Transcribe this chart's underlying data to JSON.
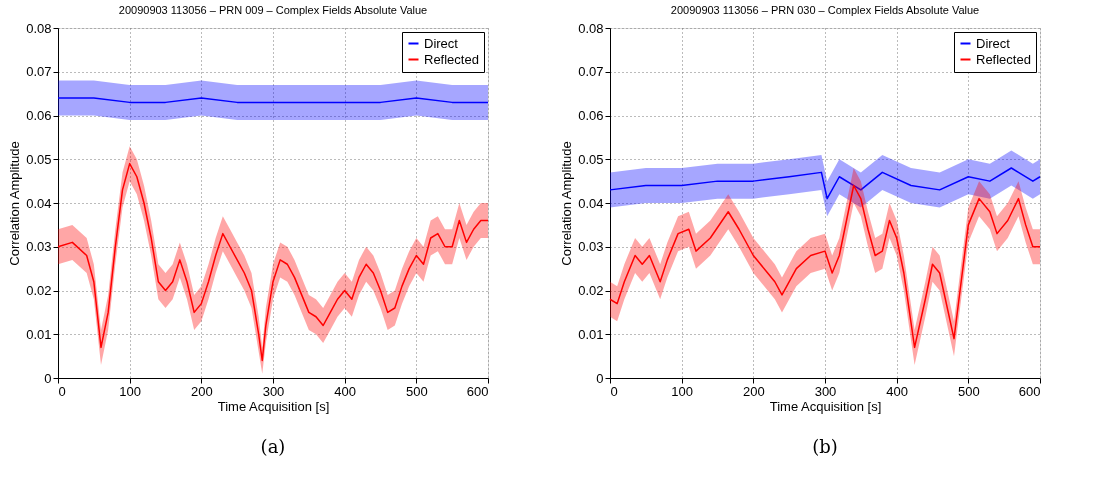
{
  "chart_data": [
    {
      "type": "line",
      "title": "20090903 113056 – PRN 009 – Complex Fields Absolute Value",
      "xlabel": "Time Acquisition [s]",
      "ylabel": "Correlation Amplitude",
      "xlim": [
        0,
        600
      ],
      "ylim": [
        0,
        0.08
      ],
      "xticks": [
        0,
        100,
        200,
        300,
        400,
        500,
        600
      ],
      "yticks": [
        0,
        0.01,
        0.02,
        0.03,
        0.04,
        0.05,
        0.06,
        0.07,
        0.08
      ],
      "grid": true,
      "legend": "top right",
      "line_style": "solid",
      "annotations": [
        "(a)"
      ],
      "series": [
        {
          "name": "Direct",
          "color": "#0000ff",
          "x": [
            0,
            50,
            100,
            150,
            200,
            250,
            300,
            350,
            400,
            450,
            500,
            550,
            600
          ],
          "values": [
            0.064,
            0.064,
            0.063,
            0.063,
            0.064,
            0.063,
            0.063,
            0.063,
            0.063,
            0.063,
            0.064,
            0.063,
            0.063
          ],
          "lower": [
            0.06,
            0.06,
            0.059,
            0.059,
            0.06,
            0.059,
            0.059,
            0.059,
            0.059,
            0.059,
            0.06,
            0.059,
            0.059
          ],
          "upper": [
            0.068,
            0.068,
            0.067,
            0.067,
            0.068,
            0.067,
            0.067,
            0.067,
            0.067,
            0.067,
            0.068,
            0.067,
            0.067
          ]
        },
        {
          "name": "Reflected",
          "color": "#ff0000",
          "x": [
            0,
            20,
            40,
            50,
            60,
            70,
            80,
            90,
            100,
            110,
            120,
            130,
            140,
            150,
            160,
            170,
            180,
            190,
            200,
            210,
            220,
            230,
            240,
            250,
            260,
            270,
            280,
            285,
            290,
            300,
            310,
            320,
            330,
            340,
            350,
            360,
            370,
            380,
            390,
            400,
            410,
            420,
            430,
            440,
            450,
            460,
            470,
            480,
            490,
            500,
            510,
            520,
            530,
            540,
            550,
            560,
            570,
            580,
            590,
            600
          ],
          "values": [
            0.03,
            0.031,
            0.028,
            0.022,
            0.007,
            0.015,
            0.03,
            0.043,
            0.049,
            0.046,
            0.04,
            0.032,
            0.022,
            0.02,
            0.022,
            0.027,
            0.022,
            0.015,
            0.017,
            0.022,
            0.028,
            0.033,
            0.03,
            0.027,
            0.024,
            0.02,
            0.01,
            0.004,
            0.012,
            0.022,
            0.027,
            0.026,
            0.023,
            0.019,
            0.015,
            0.014,
            0.012,
            0.015,
            0.018,
            0.02,
            0.018,
            0.023,
            0.026,
            0.024,
            0.02,
            0.015,
            0.016,
            0.021,
            0.025,
            0.028,
            0.026,
            0.032,
            0.033,
            0.03,
            0.03,
            0.036,
            0.031,
            0.034,
            0.036,
            0.036
          ],
          "lower": [
            0.026,
            0.027,
            0.024,
            0.018,
            0.003,
            0.011,
            0.026,
            0.039,
            0.045,
            0.042,
            0.036,
            0.028,
            0.018,
            0.016,
            0.018,
            0.023,
            0.018,
            0.011,
            0.013,
            0.018,
            0.024,
            0.029,
            0.026,
            0.023,
            0.02,
            0.016,
            0.006,
            0.001,
            0.008,
            0.018,
            0.023,
            0.022,
            0.019,
            0.015,
            0.011,
            0.01,
            0.008,
            0.011,
            0.014,
            0.016,
            0.014,
            0.019,
            0.022,
            0.02,
            0.016,
            0.011,
            0.012,
            0.017,
            0.021,
            0.024,
            0.022,
            0.028,
            0.029,
            0.026,
            0.026,
            0.032,
            0.027,
            0.03,
            0.032,
            0.032
          ],
          "upper": [
            0.034,
            0.035,
            0.032,
            0.026,
            0.011,
            0.019,
            0.034,
            0.047,
            0.053,
            0.05,
            0.044,
            0.036,
            0.026,
            0.024,
            0.026,
            0.031,
            0.026,
            0.019,
            0.021,
            0.026,
            0.032,
            0.037,
            0.034,
            0.031,
            0.028,
            0.024,
            0.014,
            0.007,
            0.016,
            0.026,
            0.031,
            0.03,
            0.027,
            0.023,
            0.019,
            0.018,
            0.016,
            0.019,
            0.022,
            0.024,
            0.022,
            0.027,
            0.03,
            0.028,
            0.024,
            0.019,
            0.02,
            0.025,
            0.029,
            0.032,
            0.03,
            0.036,
            0.037,
            0.034,
            0.034,
            0.04,
            0.035,
            0.038,
            0.04,
            0.04
          ]
        }
      ]
    },
    {
      "type": "line",
      "title": "20090903 113056 – PRN 030 – Complex Fields Absolute Value",
      "xlabel": "Time Acquisition [s]",
      "ylabel": "Correlation Amplitude",
      "xlim": [
        0,
        600
      ],
      "ylim": [
        0,
        0.08
      ],
      "xticks": [
        0,
        100,
        200,
        300,
        400,
        500,
        600
      ],
      "yticks": [
        0,
        0.01,
        0.02,
        0.03,
        0.04,
        0.05,
        0.06,
        0.07,
        0.08
      ],
      "grid": true,
      "legend": "top right",
      "line_style": "solid",
      "annotations": [
        "(b)"
      ],
      "series": [
        {
          "name": "Direct",
          "color": "#0000ff",
          "x": [
            0,
            50,
            100,
            150,
            200,
            250,
            295,
            303,
            320,
            350,
            380,
            420,
            460,
            500,
            530,
            560,
            590,
            600
          ],
          "values": [
            0.043,
            0.044,
            0.044,
            0.045,
            0.045,
            0.046,
            0.047,
            0.041,
            0.046,
            0.043,
            0.047,
            0.044,
            0.043,
            0.046,
            0.045,
            0.048,
            0.045,
            0.046
          ],
          "lower": [
            0.039,
            0.04,
            0.04,
            0.041,
            0.041,
            0.042,
            0.043,
            0.037,
            0.042,
            0.039,
            0.043,
            0.04,
            0.039,
            0.042,
            0.041,
            0.044,
            0.041,
            0.042
          ],
          "upper": [
            0.047,
            0.048,
            0.048,
            0.049,
            0.049,
            0.05,
            0.051,
            0.045,
            0.05,
            0.047,
            0.051,
            0.048,
            0.047,
            0.05,
            0.049,
            0.052,
            0.049,
            0.05
          ]
        },
        {
          "name": "Reflected",
          "color": "#ff0000",
          "x": [
            0,
            10,
            20,
            35,
            45,
            55,
            70,
            80,
            95,
            110,
            120,
            140,
            165,
            180,
            200,
            220,
            230,
            240,
            260,
            280,
            300,
            310,
            320,
            340,
            350,
            360,
            370,
            380,
            390,
            400,
            410,
            425,
            440,
            450,
            460,
            480,
            490,
            500,
            515,
            530,
            540,
            555,
            570,
            580,
            590,
            600
          ],
          "values": [
            0.018,
            0.017,
            0.022,
            0.028,
            0.026,
            0.028,
            0.022,
            0.027,
            0.033,
            0.034,
            0.029,
            0.032,
            0.038,
            0.034,
            0.028,
            0.024,
            0.022,
            0.019,
            0.025,
            0.028,
            0.029,
            0.024,
            0.028,
            0.044,
            0.041,
            0.034,
            0.028,
            0.029,
            0.036,
            0.032,
            0.024,
            0.007,
            0.018,
            0.026,
            0.024,
            0.009,
            0.022,
            0.035,
            0.041,
            0.038,
            0.033,
            0.036,
            0.041,
            0.035,
            0.03,
            0.03
          ],
          "lower": [
            0.014,
            0.013,
            0.018,
            0.024,
            0.022,
            0.024,
            0.018,
            0.023,
            0.029,
            0.03,
            0.025,
            0.028,
            0.034,
            0.03,
            0.024,
            0.02,
            0.018,
            0.015,
            0.021,
            0.024,
            0.025,
            0.02,
            0.024,
            0.04,
            0.037,
            0.03,
            0.024,
            0.025,
            0.032,
            0.028,
            0.02,
            0.003,
            0.014,
            0.022,
            0.02,
            0.005,
            0.018,
            0.031,
            0.037,
            0.034,
            0.029,
            0.032,
            0.037,
            0.031,
            0.026,
            0.026
          ],
          "upper": [
            0.022,
            0.021,
            0.026,
            0.032,
            0.03,
            0.032,
            0.026,
            0.031,
            0.037,
            0.038,
            0.033,
            0.036,
            0.042,
            0.038,
            0.032,
            0.028,
            0.026,
            0.023,
            0.029,
            0.032,
            0.033,
            0.028,
            0.032,
            0.048,
            0.045,
            0.038,
            0.032,
            0.033,
            0.04,
            0.036,
            0.028,
            0.011,
            0.022,
            0.03,
            0.028,
            0.013,
            0.026,
            0.039,
            0.045,
            0.042,
            0.037,
            0.04,
            0.045,
            0.039,
            0.034,
            0.034
          ]
        }
      ]
    }
  ]
}
